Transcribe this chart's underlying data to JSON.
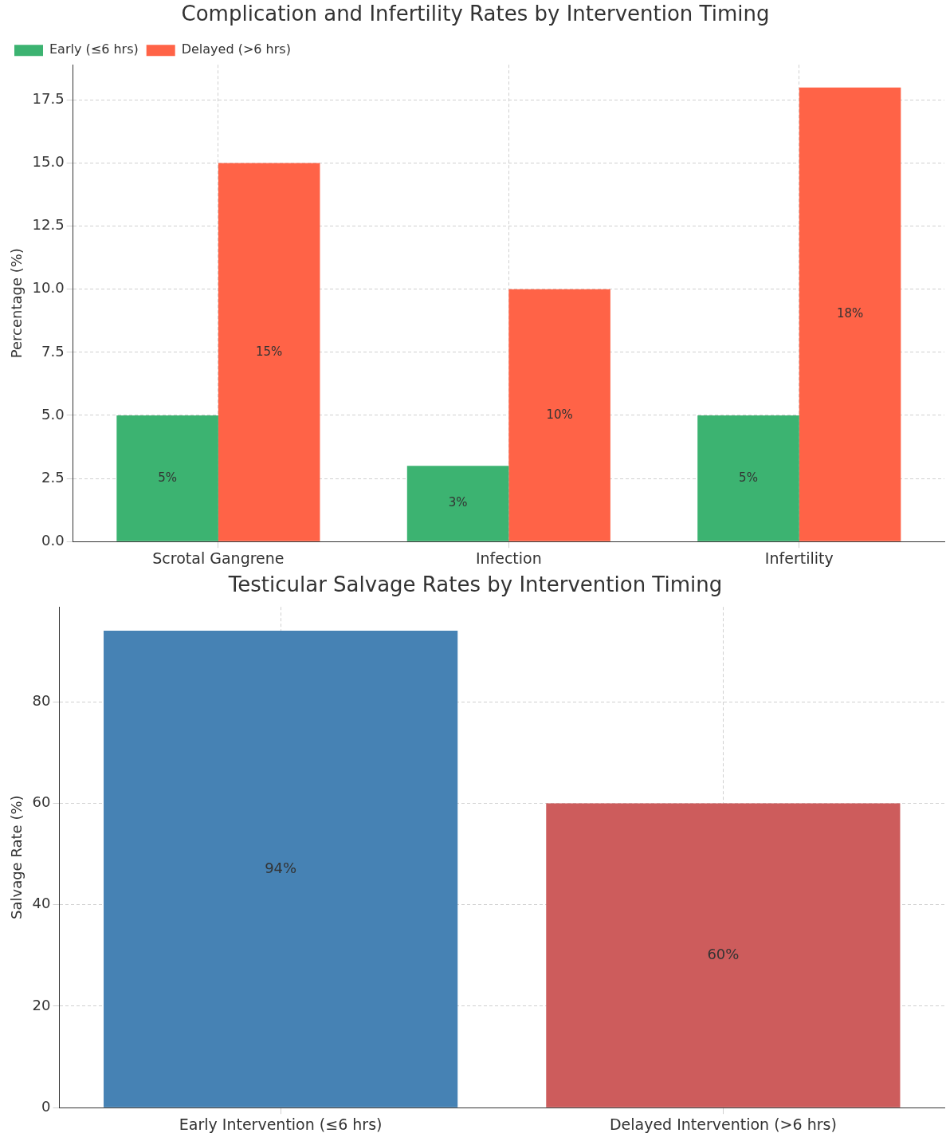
{
  "chart_data": [
    {
      "type": "bar",
      "title": "Complication and Infertility Rates by Intervention Timing",
      "ylabel": "Percentage (%)",
      "categories": [
        "Scrotal Gangrene",
        "Infection",
        "Infertility"
      ],
      "series": [
        {
          "name": "Early (≤6 hrs)",
          "color": "#3cb371",
          "values": [
            5,
            3,
            5
          ],
          "value_labels": [
            "5%",
            "3%",
            "5%"
          ]
        },
        {
          "name": "Delayed (>6 hrs)",
          "color": "#ff6347",
          "values": [
            15,
            10,
            18
          ],
          "value_labels": [
            "15%",
            "10%",
            "18%"
          ]
        }
      ],
      "ylim": [
        0,
        18.9
      ],
      "yticks": [
        {
          "value": 0,
          "label": "0.0"
        },
        {
          "value": 2.5,
          "label": "2.5"
        },
        {
          "value": 5,
          "label": "5.0"
        },
        {
          "value": 7.5,
          "label": "7.5"
        },
        {
          "value": 10,
          "label": "10.0"
        },
        {
          "value": 12.5,
          "label": "12.5"
        },
        {
          "value": 15,
          "label": "15.0"
        },
        {
          "value": 17.5,
          "label": "17.5"
        }
      ],
      "grid": true,
      "legend": "top left"
    },
    {
      "type": "bar",
      "title": "Testicular Salvage Rates by Intervention Timing",
      "ylabel": "Salvage Rate (%)",
      "categories": [
        "Early Intervention (≤6 hrs)",
        "Delayed Intervention (>6 hrs)"
      ],
      "values": [
        94,
        60
      ],
      "colors": [
        "#4682b4",
        "#cd5c5c"
      ],
      "value_labels": [
        "94%",
        "60%"
      ],
      "ylim": [
        0,
        98.7
      ],
      "yticks": [
        0,
        20,
        40,
        60,
        80
      ],
      "grid": true
    }
  ]
}
